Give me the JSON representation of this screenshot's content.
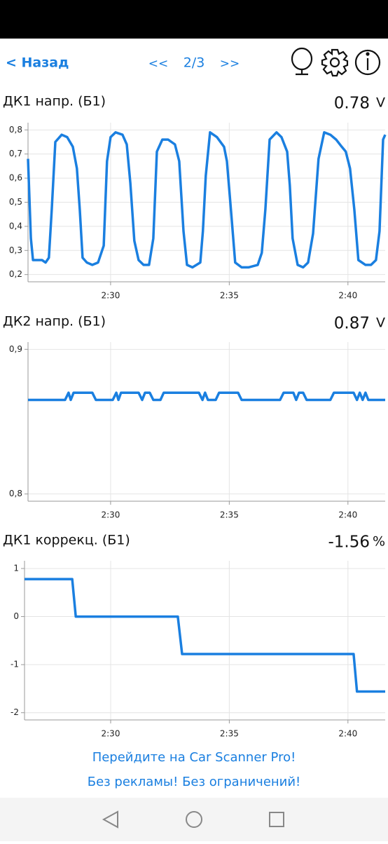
{
  "header": {
    "back": "< Назад",
    "prev": "<<",
    "page": "2/3",
    "next": ">>"
  },
  "chart_data": [
    {
      "type": "line",
      "title": "ДК1 напр. (Б1)",
      "current": 0.78,
      "unit": "V",
      "color": "#1a7fe0",
      "grid": true,
      "xlim": [
        146.52,
        161.57
      ],
      "xticks": [
        {
          "value": 150,
          "label": "2:30"
        },
        {
          "value": 155,
          "label": "2:35"
        },
        {
          "value": 160,
          "label": "2:40"
        }
      ],
      "ylim": [
        0.17,
        0.83
      ],
      "yticks": [
        {
          "value": 0.2,
          "label": "0,2"
        },
        {
          "value": 0.3,
          "label": "0,3"
        },
        {
          "value": 0.4,
          "label": "0,4"
        },
        {
          "value": 0.5,
          "label": "0,5"
        },
        {
          "value": 0.6,
          "label": "0,6"
        },
        {
          "value": 0.7,
          "label": "0,7"
        },
        {
          "value": 0.8,
          "label": "0,8"
        }
      ],
      "x": [
        146.52,
        146.64,
        146.73,
        146.87,
        147.11,
        147.26,
        147.4,
        147.52,
        147.67,
        147.94,
        148.17,
        148.41,
        148.58,
        148.7,
        148.82,
        149.0,
        149.23,
        149.47,
        149.71,
        149.85,
        150.0,
        150.21,
        150.5,
        150.68,
        150.83,
        151.0,
        151.18,
        151.39,
        151.62,
        151.8,
        151.95,
        152.18,
        152.42,
        152.71,
        152.89,
        153.07,
        153.22,
        153.45,
        153.78,
        153.89,
        154.01,
        154.19,
        154.48,
        154.78,
        154.9,
        155.07,
        155.25,
        155.52,
        155.81,
        156.2,
        156.37,
        156.52,
        156.7,
        156.99,
        157.2,
        157.44,
        157.55,
        157.67,
        157.88,
        158.11,
        158.32,
        158.53,
        158.76,
        159.0,
        159.26,
        159.5,
        159.74,
        159.91,
        160.09,
        160.27,
        160.44,
        160.74,
        160.97,
        161.18,
        161.33,
        161.48,
        161.57
      ],
      "values": [
        0.68,
        0.35,
        0.26,
        0.26,
        0.26,
        0.25,
        0.27,
        0.47,
        0.75,
        0.78,
        0.77,
        0.73,
        0.64,
        0.47,
        0.27,
        0.25,
        0.24,
        0.25,
        0.32,
        0.67,
        0.77,
        0.79,
        0.78,
        0.74,
        0.58,
        0.34,
        0.26,
        0.24,
        0.24,
        0.35,
        0.71,
        0.76,
        0.76,
        0.74,
        0.67,
        0.38,
        0.24,
        0.23,
        0.25,
        0.38,
        0.61,
        0.79,
        0.77,
        0.73,
        0.67,
        0.47,
        0.25,
        0.23,
        0.23,
        0.24,
        0.29,
        0.47,
        0.76,
        0.79,
        0.77,
        0.71,
        0.57,
        0.35,
        0.24,
        0.23,
        0.25,
        0.37,
        0.68,
        0.79,
        0.78,
        0.76,
        0.73,
        0.71,
        0.64,
        0.47,
        0.26,
        0.24,
        0.24,
        0.26,
        0.38,
        0.76,
        0.78
      ]
    },
    {
      "type": "line",
      "title": "ДК2 напр. (Б1)",
      "current": 0.87,
      "unit": "V",
      "color": "#1a7fe0",
      "grid": true,
      "xlim": [
        146.52,
        161.57
      ],
      "xticks": [
        {
          "value": 150,
          "label": "2:30"
        },
        {
          "value": 155,
          "label": "2:35"
        },
        {
          "value": 160,
          "label": "2:40"
        }
      ],
      "ylim": [
        0.795,
        0.905
      ],
      "yticks": [
        {
          "value": 0.8,
          "label": "0,8"
        },
        {
          "value": 0.9,
          "label": "0,9"
        }
      ],
      "x": [
        146.52,
        148.08,
        148.23,
        148.32,
        148.44,
        149.23,
        149.38,
        150.09,
        150.24,
        150.33,
        150.44,
        151.18,
        151.33,
        151.45,
        151.65,
        151.8,
        152.1,
        152.24,
        153.72,
        153.87,
        153.98,
        154.1,
        154.43,
        154.57,
        155.37,
        155.52,
        157.14,
        157.29,
        157.7,
        157.82,
        157.94,
        158.11,
        158.26,
        159.26,
        159.41,
        160.24,
        160.38,
        160.5,
        160.62,
        160.74,
        160.86,
        161.57
      ],
      "values": [
        0.865,
        0.865,
        0.87,
        0.865,
        0.87,
        0.87,
        0.865,
        0.865,
        0.87,
        0.865,
        0.87,
        0.87,
        0.865,
        0.87,
        0.87,
        0.865,
        0.865,
        0.87,
        0.87,
        0.865,
        0.87,
        0.865,
        0.865,
        0.87,
        0.87,
        0.865,
        0.865,
        0.87,
        0.87,
        0.865,
        0.87,
        0.87,
        0.865,
        0.865,
        0.87,
        0.87,
        0.865,
        0.87,
        0.865,
        0.87,
        0.865,
        0.865
      ]
    },
    {
      "type": "line",
      "title": "ДК1 коррекц. (Б1)",
      "current": -1.56,
      "unit": "%",
      "color": "#1a7fe0",
      "grid": true,
      "xlim": [
        146.37,
        161.57
      ],
      "xticks": [
        {
          "value": 150,
          "label": "2:30"
        },
        {
          "value": 155,
          "label": "2:35"
        },
        {
          "value": 160,
          "label": "2:40"
        }
      ],
      "ylim": [
        -2.15,
        1.16
      ],
      "yticks": [
        -2,
        -1,
        0,
        1
      ],
      "x": [
        146.37,
        148.38,
        148.53,
        152.83,
        153.01,
        160.24,
        160.38,
        161.57
      ],
      "values": [
        0.78,
        0.78,
        0,
        0,
        -0.78,
        -0.78,
        -1.56,
        -1.56
      ]
    }
  ],
  "promo": {
    "line1": "Перейдите на Car Scanner Pro!",
    "line2": "Без рекламы! Без ограничений!"
  }
}
